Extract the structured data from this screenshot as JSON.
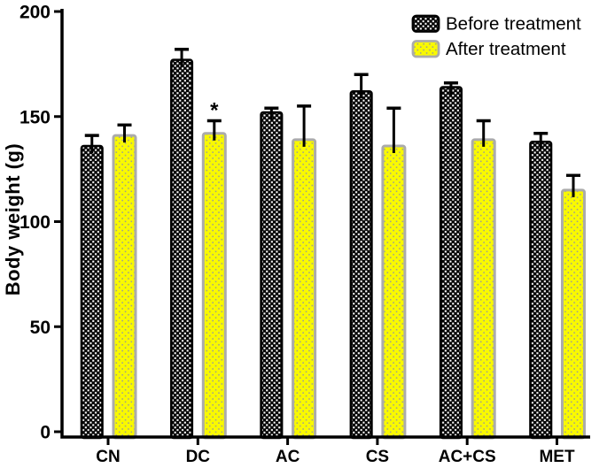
{
  "chart_data": {
    "type": "bar",
    "title": "",
    "xlabel": "",
    "ylabel": "Body weight (g)",
    "ylim": [
      0,
      200
    ],
    "yticks": [
      0,
      50,
      100,
      150,
      200
    ],
    "grid": false,
    "legend_position": "upper-right",
    "error_bars": "upper-sd",
    "categories": [
      "CN",
      "DC",
      "AC",
      "CS",
      "AC+CS",
      "MET"
    ],
    "series": [
      {
        "name": "Before treatment",
        "style": "checker",
        "fill": "#000000",
        "pattern_dot": "#ffffff",
        "border": "#000000",
        "values": [
          136,
          177,
          152,
          162,
          164,
          138
        ],
        "errors": [
          5,
          5,
          2,
          8,
          2,
          4
        ]
      },
      {
        "name": "After treatment",
        "style": "dots",
        "fill": "#f9f900",
        "pattern_dot": "#9a9a9a",
        "border": "#ababab",
        "values": [
          141,
          142,
          139,
          136,
          139,
          115
        ],
        "errors": [
          5,
          6,
          16,
          18,
          9,
          7
        ]
      }
    ],
    "annotations": [
      {
        "text": "*",
        "category": "DC",
        "series": "After treatment"
      }
    ],
    "axis_color": "#000000",
    "error_bar_color": "#000000"
  }
}
